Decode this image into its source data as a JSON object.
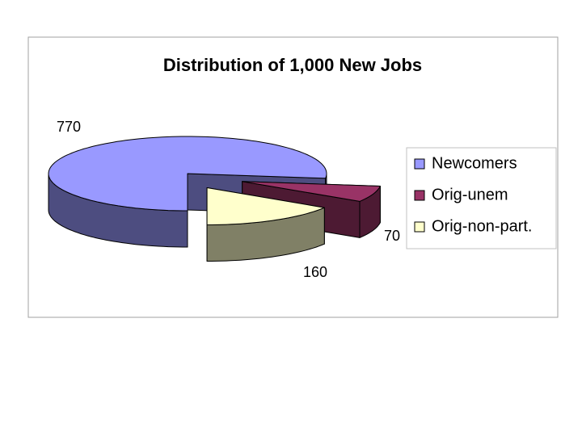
{
  "chart_data": {
    "type": "pie3d",
    "title": "Distribution of 1,000 New Jobs",
    "categories": [
      "Newcomers",
      "Orig-unem",
      "Orig-non-part."
    ],
    "values": [
      770,
      70,
      160
    ],
    "colors": [
      "#9999ff",
      "#993366",
      "#ffffcc"
    ],
    "legend": "right"
  }
}
